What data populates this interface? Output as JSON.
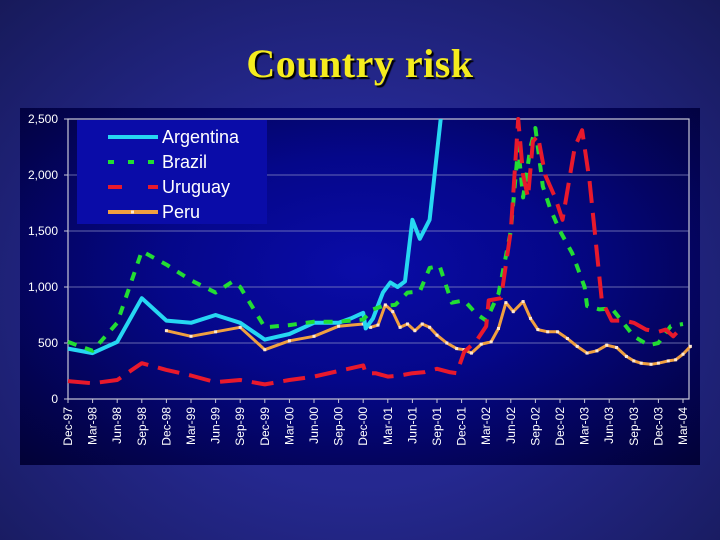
{
  "slide": {
    "title": "Country risk"
  },
  "colors": {
    "Argentina": "#26d7f2",
    "Brazil": "#22dd33",
    "Uruguay": "#e8192c",
    "Peru": "#f0a040",
    "grid": "#8f92c8",
    "axis": "#c8c8d8"
  },
  "chart_data": {
    "type": "line",
    "title": "Country risk",
    "xlabel": "",
    "ylabel": "",
    "ylim": [
      0,
      2500
    ],
    "yticks": [
      "0",
      "500",
      "1,000",
      "1,500",
      "2,000",
      "2,500"
    ],
    "ytick_values": [
      0,
      500,
      1000,
      1500,
      2000,
      2500
    ],
    "grid": true,
    "legend_position": "upper-left",
    "categories": [
      "Dec-97",
      "Mar-98",
      "Jun-98",
      "Sep-98",
      "Dec-98",
      "Mar-99",
      "Jun-99",
      "Sep-99",
      "Dec-99",
      "Mar-00",
      "Jun-00",
      "Sep-00",
      "Dec-00",
      "Mar-01",
      "Jun-01",
      "Sep-01",
      "Dec-01",
      "Mar-02",
      "Jun-02",
      "Sep-02",
      "Dec-02",
      "Mar-03",
      "Jun-03",
      "Sep-03",
      "Dec-03",
      "Mar-04"
    ],
    "x_note": "x values are quarter indices (0 = Dec-97, 25 = Mar-04)",
    "series": [
      {
        "name": "Argentina",
        "style": "solid",
        "points": [
          [
            0,
            450
          ],
          [
            1,
            410
          ],
          [
            2,
            510
          ],
          [
            3,
            900
          ],
          [
            4,
            700
          ],
          [
            5,
            680
          ],
          [
            6,
            750
          ],
          [
            7,
            680
          ],
          [
            8,
            530
          ],
          [
            9,
            580
          ],
          [
            10,
            680
          ],
          [
            11,
            680
          ],
          [
            11.5,
            720
          ],
          [
            12,
            770
          ],
          [
            12.1,
            630
          ],
          [
            12.4,
            720
          ],
          [
            12.8,
            950
          ],
          [
            13.1,
            1040
          ],
          [
            13.4,
            1000
          ],
          [
            13.7,
            1050
          ],
          [
            14.0,
            1600
          ],
          [
            14.3,
            1430
          ],
          [
            14.7,
            1600
          ],
          [
            15.0,
            2200
          ],
          [
            15.15,
            2500
          ]
        ]
      },
      {
        "name": "Brazil",
        "style": "dotted",
        "points": [
          [
            0,
            510
          ],
          [
            1,
            430
          ],
          [
            2,
            680
          ],
          [
            3,
            1320
          ],
          [
            4,
            1200
          ],
          [
            5,
            1060
          ],
          [
            6,
            950
          ],
          [
            6.7,
            1050
          ],
          [
            7,
            1000
          ],
          [
            8,
            640
          ],
          [
            9,
            660
          ],
          [
            10,
            690
          ],
          [
            11,
            690
          ],
          [
            12,
            710
          ],
          [
            12.4,
            800
          ],
          [
            12.8,
            830
          ],
          [
            13.3,
            840
          ],
          [
            13.8,
            950
          ],
          [
            14.3,
            960
          ],
          [
            14.7,
            1170
          ],
          [
            15.1,
            1190
          ],
          [
            15.6,
            860
          ],
          [
            16.1,
            880
          ],
          [
            16.6,
            760
          ],
          [
            17.0,
            700
          ],
          [
            17.5,
            940
          ],
          [
            18.0,
            1500
          ],
          [
            18.3,
            2250
          ],
          [
            18.5,
            1800
          ],
          [
            18.8,
            2250
          ],
          [
            19.0,
            2420
          ],
          [
            19.3,
            1900
          ],
          [
            19.6,
            1700
          ],
          [
            20.0,
            1500
          ],
          [
            20.5,
            1300
          ],
          [
            21.0,
            1000
          ],
          [
            21.1,
            830
          ],
          [
            21.6,
            800
          ],
          [
            22.1,
            810
          ],
          [
            22.5,
            700
          ],
          [
            23.0,
            560
          ],
          [
            23.6,
            480
          ],
          [
            24.0,
            500
          ],
          [
            24.5,
            650
          ],
          [
            25.0,
            670
          ]
        ]
      },
      {
        "name": "Uruguay",
        "style": "dashed",
        "points": [
          [
            0,
            160
          ],
          [
            1,
            140
          ],
          [
            2,
            170
          ],
          [
            3,
            320
          ],
          [
            4,
            260
          ],
          [
            5,
            210
          ],
          [
            6,
            150
          ],
          [
            7,
            170
          ],
          [
            8,
            130
          ],
          [
            9,
            170
          ],
          [
            10,
            200
          ],
          [
            11,
            250
          ],
          [
            12,
            300
          ],
          [
            12.1,
            230
          ],
          [
            12.5,
            230
          ],
          [
            13,
            200
          ],
          [
            13.5,
            210
          ],
          [
            14,
            230
          ],
          [
            14.5,
            240
          ],
          [
            15,
            270
          ],
          [
            15.5,
            240
          ],
          [
            15.8,
            230
          ],
          [
            16.1,
            420
          ],
          [
            16.6,
            520
          ],
          [
            17.0,
            650
          ],
          [
            17.1,
            880
          ],
          [
            17.6,
            900
          ],
          [
            18.0,
            1500
          ],
          [
            18.3,
            2500
          ],
          [
            18.5,
            2000
          ],
          [
            18.7,
            1800
          ],
          [
            18.9,
            2300
          ],
          [
            19.1,
            2350
          ],
          [
            19.4,
            2000
          ],
          [
            19.8,
            1800
          ],
          [
            20.1,
            1600
          ],
          [
            20.6,
            2250
          ],
          [
            20.9,
            2400
          ],
          [
            21.2,
            1950
          ],
          [
            21.7,
            880
          ],
          [
            22.1,
            700
          ],
          [
            22.6,
            700
          ],
          [
            23.0,
            680
          ],
          [
            23.5,
            620
          ],
          [
            24.0,
            600
          ],
          [
            24.3,
            620
          ],
          [
            24.6,
            560
          ],
          [
            25.0,
            650
          ]
        ]
      },
      {
        "name": "Peru",
        "style": "solid-markers",
        "points": [
          [
            4,
            610
          ],
          [
            5,
            560
          ],
          [
            6,
            600
          ],
          [
            7,
            640
          ],
          [
            8,
            440
          ],
          [
            9,
            520
          ],
          [
            10,
            560
          ],
          [
            11,
            650
          ],
          [
            12,
            670
          ],
          [
            12.3,
            640
          ],
          [
            12.6,
            660
          ],
          [
            12.9,
            840
          ],
          [
            13.2,
            780
          ],
          [
            13.5,
            640
          ],
          [
            13.8,
            670
          ],
          [
            14.1,
            610
          ],
          [
            14.4,
            670
          ],
          [
            14.7,
            640
          ],
          [
            15.0,
            570
          ],
          [
            15.4,
            500
          ],
          [
            15.8,
            450
          ],
          [
            16.1,
            440
          ],
          [
            16.4,
            410
          ],
          [
            16.8,
            490
          ],
          [
            17.2,
            510
          ],
          [
            17.5,
            630
          ],
          [
            17.8,
            860
          ],
          [
            18.1,
            780
          ],
          [
            18.5,
            870
          ],
          [
            18.8,
            720
          ],
          [
            19.1,
            620
          ],
          [
            19.5,
            600
          ],
          [
            19.9,
            600
          ],
          [
            20.3,
            540
          ],
          [
            20.7,
            470
          ],
          [
            21.1,
            410
          ],
          [
            21.5,
            430
          ],
          [
            21.9,
            480
          ],
          [
            22.3,
            460
          ],
          [
            22.7,
            380
          ],
          [
            23.0,
            340
          ],
          [
            23.3,
            320
          ],
          [
            23.7,
            310
          ],
          [
            24.0,
            320
          ],
          [
            24.4,
            340
          ],
          [
            24.7,
            350
          ],
          [
            25.0,
            400
          ],
          [
            25.3,
            470
          ]
        ]
      }
    ]
  }
}
